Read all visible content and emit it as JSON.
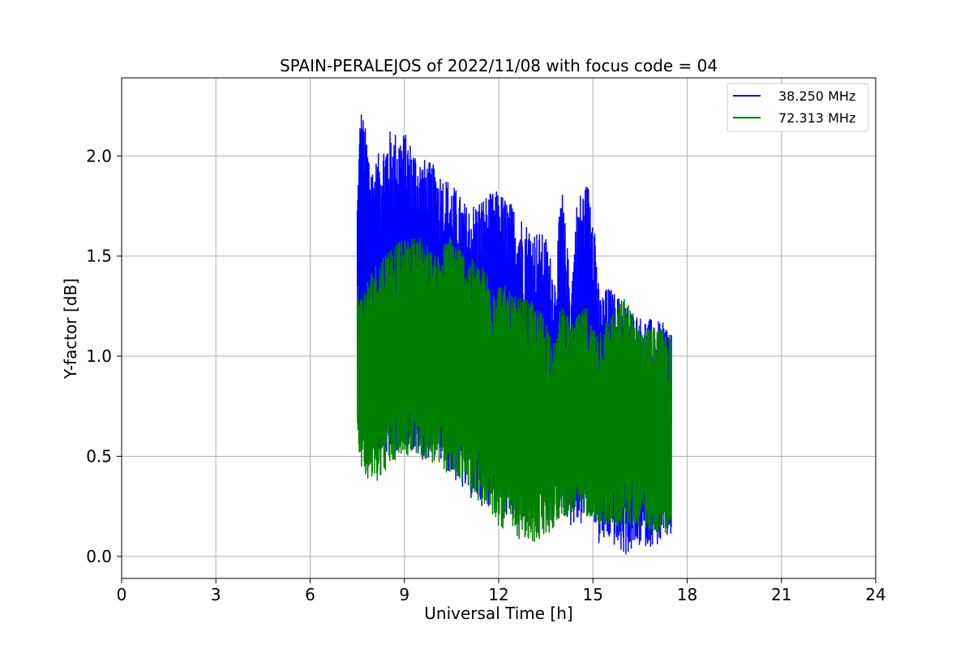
{
  "chart_data": {
    "type": "line",
    "title": "SPAIN-PERALEJOS of 2022/11/08 with focus code = 04",
    "xlabel": "Universal Time [h]",
    "ylabel": "Y-factor [dB]",
    "xlim": [
      0,
      24
    ],
    "ylim": [
      -0.11,
      2.39
    ],
    "xticks": [
      0,
      3,
      6,
      9,
      12,
      15,
      18,
      21,
      24
    ],
    "yticks": [
      0.0,
      0.5,
      1.0,
      1.5,
      2.0
    ],
    "ytick_labels": [
      "0.0",
      "0.5",
      "1.0",
      "1.5",
      "2.0"
    ],
    "grid": true,
    "legend_position": "top-right",
    "series": [
      {
        "name": "38.250 MHz",
        "color": "#0000ff",
        "x_range": [
          7.5,
          17.5
        ],
        "envelope": {
          "x": [
            7.5,
            7.6,
            8.0,
            8.5,
            9.0,
            9.5,
            10.0,
            10.5,
            11.0,
            11.5,
            12.0,
            12.5,
            13.0,
            13.5,
            13.8,
            14.0,
            14.3,
            14.5,
            14.8,
            15.0,
            15.2,
            15.5,
            16.0,
            16.5,
            17.0,
            17.5
          ],
          "upper": [
            1.8,
            2.27,
            1.95,
            2.13,
            2.12,
            2.0,
            1.95,
            1.87,
            1.75,
            1.8,
            1.83,
            1.75,
            1.65,
            1.6,
            1.4,
            1.87,
            1.35,
            1.8,
            1.87,
            1.85,
            1.3,
            1.35,
            1.27,
            1.2,
            1.18,
            1.15
          ],
          "lower": [
            0.75,
            0.55,
            0.5,
            0.5,
            0.55,
            0.48,
            0.5,
            0.4,
            0.3,
            0.25,
            0.25,
            0.15,
            0.2,
            0.2,
            0.25,
            0.25,
            0.15,
            0.15,
            0.15,
            0.2,
            0.05,
            0.08,
            0.0,
            0.05,
            0.05,
            0.1
          ]
        }
      },
      {
        "name": "72.313 MHz",
        "color": "#008000",
        "x_range": [
          7.5,
          17.5
        ],
        "envelope": {
          "x": [
            7.5,
            7.6,
            8.0,
            8.5,
            9.0,
            9.5,
            10.0,
            10.5,
            11.0,
            11.5,
            12.0,
            12.5,
            13.0,
            13.5,
            13.8,
            14.0,
            14.3,
            14.5,
            14.8,
            15.0,
            15.2,
            15.5,
            16.0,
            16.5,
            17.0,
            17.5
          ],
          "upper": [
            1.4,
            1.3,
            1.45,
            1.55,
            1.58,
            1.6,
            1.5,
            1.62,
            1.5,
            1.45,
            1.38,
            1.3,
            1.28,
            1.2,
            1.05,
            1.3,
            1.15,
            1.2,
            1.25,
            1.15,
            1.15,
            1.2,
            1.3,
            1.15,
            1.15,
            1.1
          ],
          "lower": [
            0.65,
            0.45,
            0.35,
            0.45,
            0.5,
            0.5,
            0.45,
            0.4,
            0.35,
            0.25,
            0.15,
            0.1,
            0.05,
            0.1,
            0.15,
            0.2,
            0.2,
            0.2,
            0.2,
            0.2,
            0.15,
            0.15,
            0.15,
            0.15,
            0.12,
            0.12
          ]
        }
      }
    ]
  }
}
